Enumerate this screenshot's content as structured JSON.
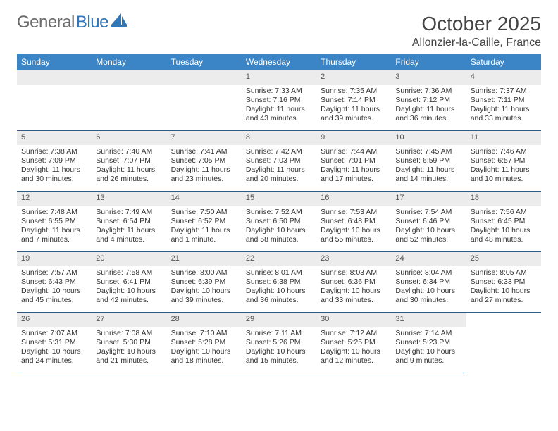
{
  "logo": {
    "part1": "General",
    "part2": "Blue"
  },
  "title": "October 2025",
  "location": "Allonzier-la-Caille, France",
  "colors": {
    "header_bg": "#3b85c6",
    "daynum_bg": "#ececec",
    "rule": "#2f5b85",
    "logo_gray": "#6b6b6b",
    "logo_blue": "#2f77b8"
  },
  "weekdays": [
    "Sunday",
    "Monday",
    "Tuesday",
    "Wednesday",
    "Thursday",
    "Friday",
    "Saturday"
  ],
  "leading_blanks": 3,
  "days": [
    {
      "n": 1,
      "sunrise": "7:33 AM",
      "sunset": "7:16 PM",
      "daylight": "11 hours and 43 minutes."
    },
    {
      "n": 2,
      "sunrise": "7:35 AM",
      "sunset": "7:14 PM",
      "daylight": "11 hours and 39 minutes."
    },
    {
      "n": 3,
      "sunrise": "7:36 AM",
      "sunset": "7:12 PM",
      "daylight": "11 hours and 36 minutes."
    },
    {
      "n": 4,
      "sunrise": "7:37 AM",
      "sunset": "7:11 PM",
      "daylight": "11 hours and 33 minutes."
    },
    {
      "n": 5,
      "sunrise": "7:38 AM",
      "sunset": "7:09 PM",
      "daylight": "11 hours and 30 minutes."
    },
    {
      "n": 6,
      "sunrise": "7:40 AM",
      "sunset": "7:07 PM",
      "daylight": "11 hours and 26 minutes."
    },
    {
      "n": 7,
      "sunrise": "7:41 AM",
      "sunset": "7:05 PM",
      "daylight": "11 hours and 23 minutes."
    },
    {
      "n": 8,
      "sunrise": "7:42 AM",
      "sunset": "7:03 PM",
      "daylight": "11 hours and 20 minutes."
    },
    {
      "n": 9,
      "sunrise": "7:44 AM",
      "sunset": "7:01 PM",
      "daylight": "11 hours and 17 minutes."
    },
    {
      "n": 10,
      "sunrise": "7:45 AM",
      "sunset": "6:59 PM",
      "daylight": "11 hours and 14 minutes."
    },
    {
      "n": 11,
      "sunrise": "7:46 AM",
      "sunset": "6:57 PM",
      "daylight": "11 hours and 10 minutes."
    },
    {
      "n": 12,
      "sunrise": "7:48 AM",
      "sunset": "6:55 PM",
      "daylight": "11 hours and 7 minutes."
    },
    {
      "n": 13,
      "sunrise": "7:49 AM",
      "sunset": "6:54 PM",
      "daylight": "11 hours and 4 minutes."
    },
    {
      "n": 14,
      "sunrise": "7:50 AM",
      "sunset": "6:52 PM",
      "daylight": "11 hours and 1 minute."
    },
    {
      "n": 15,
      "sunrise": "7:52 AM",
      "sunset": "6:50 PM",
      "daylight": "10 hours and 58 minutes."
    },
    {
      "n": 16,
      "sunrise": "7:53 AM",
      "sunset": "6:48 PM",
      "daylight": "10 hours and 55 minutes."
    },
    {
      "n": 17,
      "sunrise": "7:54 AM",
      "sunset": "6:46 PM",
      "daylight": "10 hours and 52 minutes."
    },
    {
      "n": 18,
      "sunrise": "7:56 AM",
      "sunset": "6:45 PM",
      "daylight": "10 hours and 48 minutes."
    },
    {
      "n": 19,
      "sunrise": "7:57 AM",
      "sunset": "6:43 PM",
      "daylight": "10 hours and 45 minutes."
    },
    {
      "n": 20,
      "sunrise": "7:58 AM",
      "sunset": "6:41 PM",
      "daylight": "10 hours and 42 minutes."
    },
    {
      "n": 21,
      "sunrise": "8:00 AM",
      "sunset": "6:39 PM",
      "daylight": "10 hours and 39 minutes."
    },
    {
      "n": 22,
      "sunrise": "8:01 AM",
      "sunset": "6:38 PM",
      "daylight": "10 hours and 36 minutes."
    },
    {
      "n": 23,
      "sunrise": "8:03 AM",
      "sunset": "6:36 PM",
      "daylight": "10 hours and 33 minutes."
    },
    {
      "n": 24,
      "sunrise": "8:04 AM",
      "sunset": "6:34 PM",
      "daylight": "10 hours and 30 minutes."
    },
    {
      "n": 25,
      "sunrise": "8:05 AM",
      "sunset": "6:33 PM",
      "daylight": "10 hours and 27 minutes."
    },
    {
      "n": 26,
      "sunrise": "7:07 AM",
      "sunset": "5:31 PM",
      "daylight": "10 hours and 24 minutes."
    },
    {
      "n": 27,
      "sunrise": "7:08 AM",
      "sunset": "5:30 PM",
      "daylight": "10 hours and 21 minutes."
    },
    {
      "n": 28,
      "sunrise": "7:10 AM",
      "sunset": "5:28 PM",
      "daylight": "10 hours and 18 minutes."
    },
    {
      "n": 29,
      "sunrise": "7:11 AM",
      "sunset": "5:26 PM",
      "daylight": "10 hours and 15 minutes."
    },
    {
      "n": 30,
      "sunrise": "7:12 AM",
      "sunset": "5:25 PM",
      "daylight": "10 hours and 12 minutes."
    },
    {
      "n": 31,
      "sunrise": "7:14 AM",
      "sunset": "5:23 PM",
      "daylight": "10 hours and 9 minutes."
    }
  ],
  "labels": {
    "sunrise": "Sunrise:",
    "sunset": "Sunset:",
    "daylight": "Daylight:"
  }
}
